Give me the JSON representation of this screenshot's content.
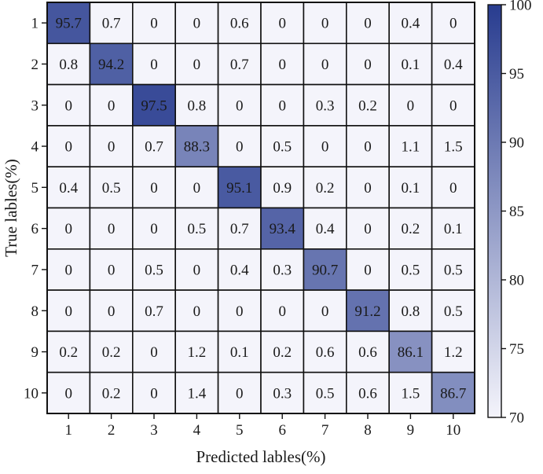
{
  "chart_data": {
    "type": "heatmap",
    "title": "",
    "xlabel": "Predicted lables(%)",
    "ylabel": "True lables(%)",
    "x_categories": [
      "1",
      "2",
      "3",
      "4",
      "5",
      "6",
      "7",
      "8",
      "9",
      "10"
    ],
    "y_categories": [
      "1",
      "2",
      "3",
      "4",
      "5",
      "6",
      "7",
      "8",
      "9",
      "10"
    ],
    "values": [
      [
        95.7,
        0.7,
        0,
        0,
        0.6,
        0,
        0,
        0,
        0.4,
        0
      ],
      [
        0.8,
        94.2,
        0,
        0,
        0.7,
        0,
        0,
        0,
        0.1,
        0.4
      ],
      [
        0,
        0,
        97.5,
        0.8,
        0,
        0,
        0.3,
        0.2,
        0,
        0
      ],
      [
        0,
        0,
        0.7,
        88.3,
        0,
        0.5,
        0,
        0,
        1.1,
        1.5
      ],
      [
        0.4,
        0.5,
        0,
        0,
        95.1,
        0.9,
        0.2,
        0,
        0.1,
        0
      ],
      [
        0,
        0,
        0,
        0.5,
        0.7,
        93.4,
        0.4,
        0,
        0.2,
        0.1
      ],
      [
        0,
        0,
        0.5,
        0,
        0.4,
        0.3,
        90.7,
        0,
        0.5,
        0.5
      ],
      [
        0,
        0,
        0.7,
        0,
        0,
        0,
        0,
        91.2,
        0.8,
        0.5
      ],
      [
        0.2,
        0.2,
        0,
        1.2,
        0.1,
        0.2,
        0.6,
        0.6,
        86.1,
        1.2
      ],
      [
        0,
        0.2,
        0,
        1.4,
        0,
        0.3,
        0.5,
        0.6,
        1.5,
        86.7
      ]
    ],
    "colorbar": {
      "min": 70,
      "max": 100,
      "ticks": [
        70,
        75,
        80,
        85,
        90,
        95,
        100
      ],
      "color_low": "#f4f4fb",
      "color_high": "#283c8f"
    },
    "grid": true,
    "legend": "colorbar-right"
  }
}
